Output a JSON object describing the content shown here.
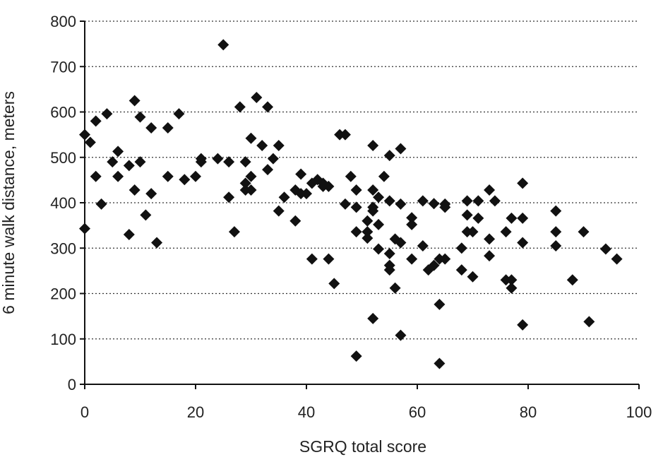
{
  "chart_data": {
    "type": "scatter",
    "xlabel": "SGRQ total score",
    "ylabel": "6 minute walk distance, meters",
    "xlim": [
      0,
      100
    ],
    "ylim": [
      0,
      800
    ],
    "x_ticks": [
      0,
      20,
      40,
      60,
      80,
      100
    ],
    "y_ticks": [
      0,
      100,
      200,
      300,
      400,
      500,
      600,
      700,
      800
    ],
    "grid": "horizontal dotted",
    "marker": "diamond",
    "marker_color": "#111111",
    "points": [
      [
        0,
        550
      ],
      [
        0,
        343
      ],
      [
        1,
        533
      ],
      [
        2,
        580
      ],
      [
        2,
        458
      ],
      [
        3,
        397
      ],
      [
        4,
        596
      ],
      [
        5,
        490
      ],
      [
        6,
        513
      ],
      [
        6,
        458
      ],
      [
        8,
        330
      ],
      [
        8,
        482
      ],
      [
        9,
        625
      ],
      [
        9,
        428
      ],
      [
        10,
        589
      ],
      [
        10,
        490
      ],
      [
        11,
        373
      ],
      [
        12,
        565
      ],
      [
        12,
        420
      ],
      [
        13,
        312
      ],
      [
        15,
        565
      ],
      [
        15,
        458
      ],
      [
        17,
        596
      ],
      [
        18,
        451
      ],
      [
        20,
        458
      ],
      [
        21,
        490
      ],
      [
        21,
        497
      ],
      [
        24,
        497
      ],
      [
        25,
        748
      ],
      [
        26,
        490
      ],
      [
        26,
        412
      ],
      [
        27,
        336
      ],
      [
        28,
        611
      ],
      [
        29,
        490
      ],
      [
        29,
        443
      ],
      [
        29,
        428
      ],
      [
        30,
        542
      ],
      [
        30,
        458
      ],
      [
        30,
        428
      ],
      [
        31,
        632
      ],
      [
        32,
        526
      ],
      [
        33,
        611
      ],
      [
        33,
        473
      ],
      [
        34,
        497
      ],
      [
        35,
        526
      ],
      [
        35,
        382
      ],
      [
        36,
        412
      ],
      [
        38,
        428
      ],
      [
        38,
        360
      ],
      [
        39,
        463
      ],
      [
        39,
        420
      ],
      [
        40,
        420
      ],
      [
        41,
        443
      ],
      [
        41,
        276
      ],
      [
        42,
        451
      ],
      [
        43,
        443
      ],
      [
        43,
        436
      ],
      [
        44,
        436
      ],
      [
        44,
        276
      ],
      [
        45,
        222
      ],
      [
        46,
        550
      ],
      [
        47,
        550
      ],
      [
        47,
        397
      ],
      [
        48,
        458
      ],
      [
        49,
        428
      ],
      [
        49,
        390
      ],
      [
        49,
        336
      ],
      [
        49,
        62
      ],
      [
        51,
        360
      ],
      [
        51,
        336
      ],
      [
        51,
        322
      ],
      [
        52,
        526
      ],
      [
        52,
        428
      ],
      [
        52,
        390
      ],
      [
        52,
        382
      ],
      [
        52,
        145
      ],
      [
        53,
        412
      ],
      [
        53,
        352
      ],
      [
        53,
        298
      ],
      [
        54,
        458
      ],
      [
        55,
        504
      ],
      [
        55,
        404
      ],
      [
        55,
        288
      ],
      [
        55,
        262
      ],
      [
        55,
        252
      ],
      [
        56,
        320
      ],
      [
        56,
        212
      ],
      [
        57,
        519
      ],
      [
        57,
        397
      ],
      [
        57,
        312
      ],
      [
        57,
        108
      ],
      [
        59,
        367
      ],
      [
        59,
        352
      ],
      [
        59,
        276
      ],
      [
        61,
        404
      ],
      [
        61,
        305
      ],
      [
        62,
        252
      ],
      [
        63,
        398
      ],
      [
        63,
        262
      ],
      [
        64,
        276
      ],
      [
        64,
        176
      ],
      [
        64,
        46
      ],
      [
        65,
        397
      ],
      [
        65,
        390
      ],
      [
        65,
        276
      ],
      [
        68,
        300
      ],
      [
        68,
        252
      ],
      [
        69,
        404
      ],
      [
        69,
        373
      ],
      [
        69,
        336
      ],
      [
        70,
        336
      ],
      [
        70,
        237
      ],
      [
        71,
        404
      ],
      [
        71,
        366
      ],
      [
        73,
        428
      ],
      [
        73,
        320
      ],
      [
        73,
        283
      ],
      [
        74,
        404
      ],
      [
        76,
        336
      ],
      [
        76,
        230
      ],
      [
        77,
        366
      ],
      [
        77,
        230
      ],
      [
        77,
        212
      ],
      [
        79,
        443
      ],
      [
        79,
        366
      ],
      [
        79,
        312
      ],
      [
        79,
        131
      ],
      [
        85,
        382
      ],
      [
        85,
        336
      ],
      [
        85,
        305
      ],
      [
        88,
        230
      ],
      [
        90,
        336
      ],
      [
        91,
        138
      ],
      [
        94,
        298
      ],
      [
        96,
        276
      ]
    ]
  }
}
